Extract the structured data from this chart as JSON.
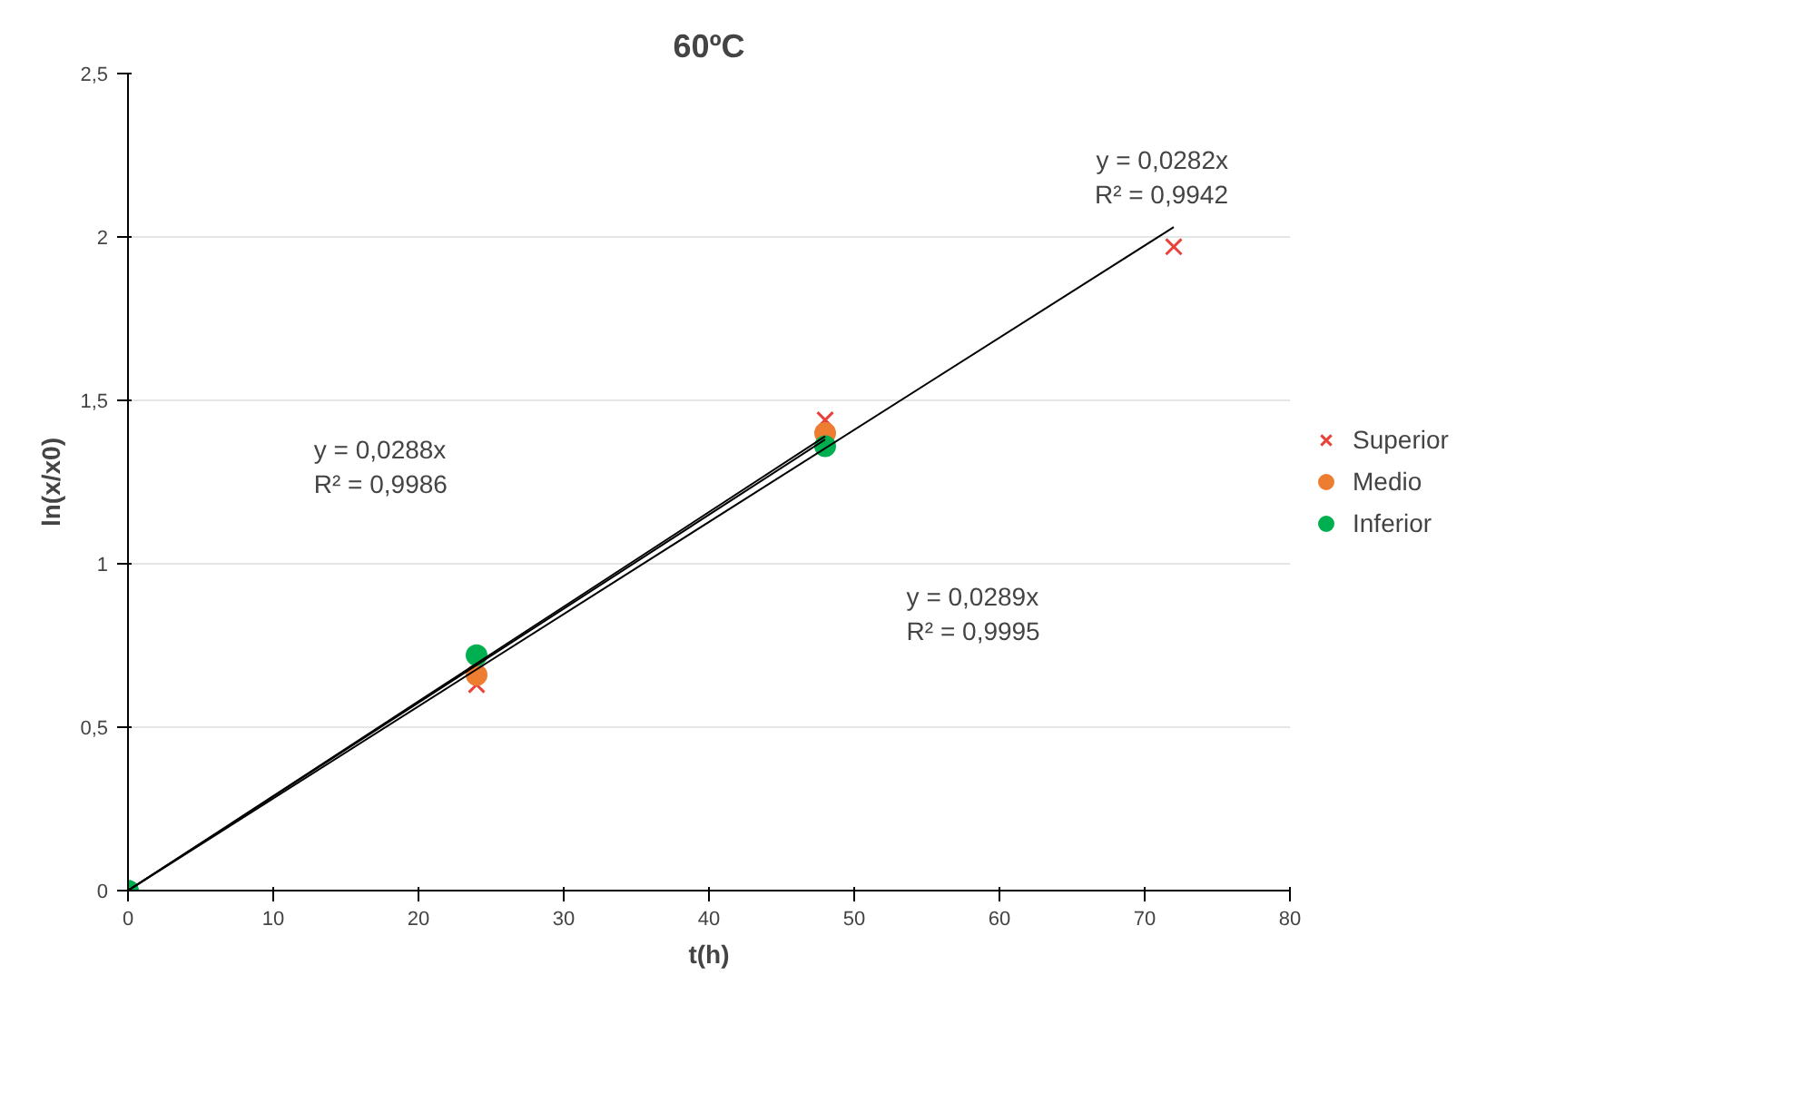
{
  "chart_data": {
    "type": "scatter",
    "title": "60ºC",
    "xlabel": "t(h)",
    "ylabel": "ln(x/x0)",
    "xlim": [
      0,
      80
    ],
    "xticks": [
      0,
      10,
      20,
      30,
      40,
      50,
      60,
      70,
      80
    ],
    "ylim": [
      0,
      2.5
    ],
    "yticks": [
      0,
      {
        "value": 0.5,
        "label": "0,5"
      },
      1,
      {
        "value": 1.5,
        "label": "1,5"
      },
      2,
      {
        "value": 2.5,
        "label": "2,5"
      }
    ],
    "grid": "y",
    "legend": "right",
    "series": [
      {
        "name": "Superior",
        "color": "#e8423b",
        "marker": "cross",
        "x": [
          0,
          24,
          48,
          72
        ],
        "values": [
          0,
          0.63,
          1.44,
          1.97
        ]
      },
      {
        "name": "Medio",
        "color": "#ed7d31",
        "marker": "circle",
        "x": [
          24,
          48
        ],
        "values": [
          0.66,
          1.4
        ]
      },
      {
        "name": "Inferior",
        "color": "#00b050",
        "marker": "circle",
        "x": [
          0,
          24,
          48
        ],
        "values": [
          0,
          0.72,
          1.36
        ]
      },
      {
        "type": "line",
        "color": "#000000",
        "marker": "none",
        "x": [
          0,
          72
        ],
        "values": [
          0,
          2.03
        ]
      },
      {
        "type": "line",
        "color": "#000000",
        "marker": "none",
        "x": [
          0,
          48
        ],
        "values": [
          0,
          1.38
        ]
      },
      {
        "type": "line",
        "color": "#000000",
        "marker": "none",
        "x": [
          0,
          48
        ],
        "values": [
          0,
          1.39
        ]
      }
    ],
    "annotations": [
      {
        "text": "y = 0,0282x\nR² = 0,9942",
        "x": 72,
        "y": 2.03
      },
      "y = 0,0288x\nR² = 0,9986",
      "y = 0,0289x\nR² = 0,9995"
    ]
  }
}
